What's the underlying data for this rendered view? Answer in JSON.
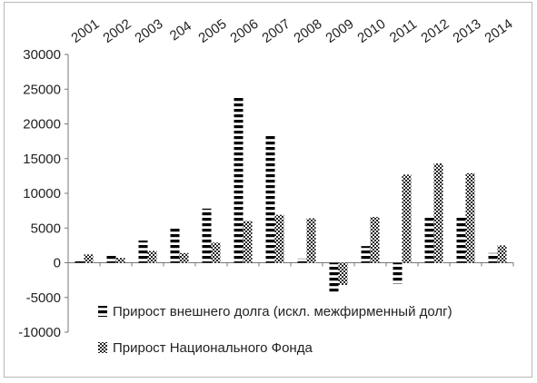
{
  "chart_data": {
    "type": "bar",
    "categories": [
      "2001",
      "2002",
      "2003",
      "204",
      "2005",
      "2006",
      "2007",
      "2008",
      "2009",
      "2010",
      "2011",
      "2012",
      "2013",
      "2014"
    ],
    "series": [
      {
        "name": "Прирост внешнего долга (искл. межфирменный долг)",
        "pattern": "horizontal-stripes",
        "color": "#000000",
        "values": [
          500,
          1200,
          3200,
          5000,
          7800,
          24000,
          18300,
          600,
          -4200,
          2400,
          -3000,
          6600,
          6700,
          1400
        ]
      },
      {
        "name": "Прирост Национального Фонда",
        "pattern": "checkered",
        "color": "#333333",
        "values": [
          1200,
          700,
          1700,
          1400,
          2900,
          6000,
          6900,
          6400,
          -3200,
          6600,
          12700,
          14300,
          12900,
          2500
        ]
      }
    ],
    "ylim": [
      -10000,
      30000
    ],
    "yticks": [
      "30000",
      "25000",
      "20000",
      "15000",
      "10000",
      "5000",
      "0",
      "-5000",
      "-10000"
    ],
    "ytick_values": [
      30000,
      25000,
      20000,
      15000,
      10000,
      5000,
      0,
      -5000,
      -10000
    ],
    "title": "",
    "xlabel": "",
    "ylabel": "",
    "grid": false,
    "legend_position": "bottom-right-inside"
  }
}
